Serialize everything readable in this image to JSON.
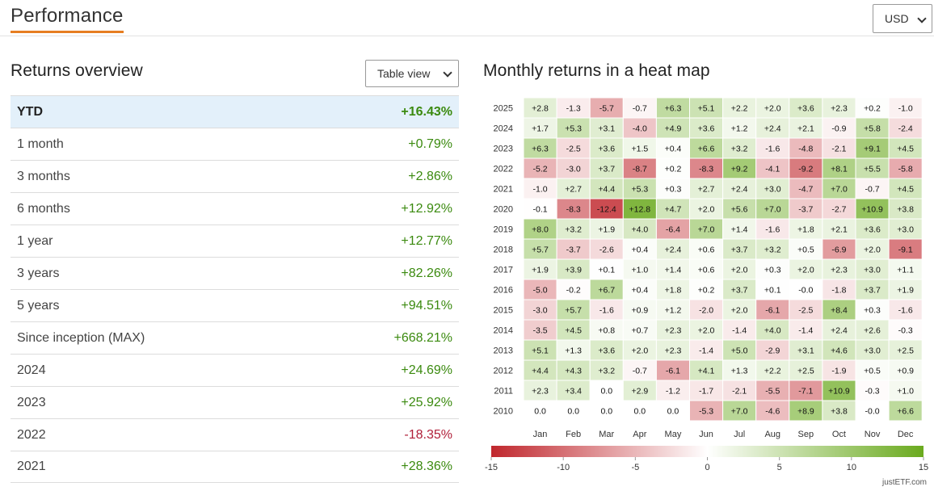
{
  "header": {
    "title": "Performance",
    "currency": "USD"
  },
  "overview": {
    "title": "Returns overview",
    "view_label": "Table view",
    "rows": [
      {
        "label": "YTD",
        "value": "+16.43%"
      },
      {
        "label": "1 month",
        "value": "+0.79%"
      },
      {
        "label": "3 months",
        "value": "+2.86%"
      },
      {
        "label": "6 months",
        "value": "+12.92%"
      },
      {
        "label": "1 year",
        "value": "+12.77%"
      },
      {
        "label": "3 years",
        "value": "+82.26%"
      },
      {
        "label": "5 years",
        "value": "+94.51%"
      },
      {
        "label": "Since inception (MAX)",
        "value": "+668.21%"
      },
      {
        "label": "2024",
        "value": "+24.69%"
      },
      {
        "label": "2023",
        "value": "+25.92%"
      },
      {
        "label": "2022",
        "value": "-18.35%"
      },
      {
        "label": "2021",
        "value": "+28.36%"
      }
    ]
  },
  "heatmap_title": "Monthly returns in a heat map",
  "watermark": "justETF.com",
  "colors": {
    "accent": "#e67e22",
    "positive": "#3b8a0f",
    "negative": "#b0203a",
    "scale_min": "#c0272d",
    "scale_max": "#6aaa1e"
  },
  "chart_data": {
    "type": "heatmap",
    "x": [
      "Jan",
      "Feb",
      "Mar",
      "Apr",
      "May",
      "Jun",
      "Jul",
      "Aug",
      "Sep",
      "Oct",
      "Nov",
      "Dec"
    ],
    "y": [
      "2025",
      "2024",
      "2023",
      "2022",
      "2021",
      "2020",
      "2019",
      "2018",
      "2017",
      "2016",
      "2015",
      "2014",
      "2013",
      "2012",
      "2011",
      "2010"
    ],
    "values": [
      [
        "+2.8",
        "-1.3",
        "-5.7",
        "-0.7",
        "+6.3",
        "+5.1",
        "+2.2",
        "+2.0",
        "+3.6",
        "+2.3",
        "+0.2",
        "-1.0"
      ],
      [
        "+1.7",
        "+5.3",
        "+3.1",
        "-4.0",
        "+4.9",
        "+3.6",
        "+1.2",
        "+2.4",
        "+2.1",
        "-0.9",
        "+5.8",
        "-2.4"
      ],
      [
        "+6.3",
        "-2.5",
        "+3.6",
        "+1.5",
        "+0.4",
        "+6.6",
        "+3.2",
        "-1.6",
        "-4.8",
        "-2.1",
        "+9.1",
        "+4.5"
      ],
      [
        "-5.2",
        "-3.0",
        "+3.7",
        "-8.7",
        "+0.2",
        "-8.3",
        "+9.2",
        "-4.1",
        "-9.2",
        "+8.1",
        "+5.5",
        "-5.8"
      ],
      [
        "-1.0",
        "+2.7",
        "+4.4",
        "+5.3",
        "+0.3",
        "+2.7",
        "+2.4",
        "+3.0",
        "-4.7",
        "+7.0",
        "-0.7",
        "+4.5"
      ],
      [
        "-0.1",
        "-8.3",
        "-12.4",
        "+12.8",
        "+4.7",
        "+2.0",
        "+5.6",
        "+7.0",
        "-3.7",
        "-2.7",
        "+10.9",
        "+3.8"
      ],
      [
        "+8.0",
        "+3.2",
        "+1.9",
        "+4.0",
        "-6.4",
        "+7.0",
        "+1.4",
        "-1.6",
        "+1.8",
        "+2.1",
        "+3.6",
        "+3.0"
      ],
      [
        "+5.7",
        "-3.7",
        "-2.6",
        "+0.4",
        "+2.4",
        "+0.6",
        "+3.7",
        "+3.2",
        "+0.5",
        "-6.9",
        "+2.0",
        "-9.1"
      ],
      [
        "+1.9",
        "+3.9",
        "+0.1",
        "+1.0",
        "+1.4",
        "+0.6",
        "+2.0",
        "+0.3",
        "+2.0",
        "+2.3",
        "+3.0",
        "+1.1"
      ],
      [
        "-5.0",
        "-0.2",
        "+6.7",
        "+0.4",
        "+1.8",
        "+0.2",
        "+3.7",
        "+0.1",
        "-0.0",
        "-1.8",
        "+3.7",
        "+1.9"
      ],
      [
        "-3.0",
        "+5.7",
        "-1.6",
        "+0.9",
        "+1.2",
        "-2.0",
        "+2.0",
        "-6.1",
        "-2.5",
        "+8.4",
        "+0.3",
        "-1.6"
      ],
      [
        "-3.5",
        "+4.5",
        "+0.8",
        "+0.7",
        "+2.3",
        "+2.0",
        "-1.4",
        "+4.0",
        "-1.4",
        "+2.4",
        "+2.6",
        "-0.3"
      ],
      [
        "+5.1",
        "+1.3",
        "+3.6",
        "+2.0",
        "+2.3",
        "-1.4",
        "+5.0",
        "-2.9",
        "+3.1",
        "+4.6",
        "+3.0",
        "+2.5"
      ],
      [
        "+4.4",
        "+4.3",
        "+3.2",
        "-0.7",
        "-6.1",
        "+4.1",
        "+1.3",
        "+2.2",
        "+2.5",
        "-1.9",
        "+0.5",
        "+0.9"
      ],
      [
        "+2.3",
        "+3.4",
        "0.0",
        "+2.9",
        "-1.2",
        "-1.7",
        "-2.1",
        "-5.5",
        "-7.1",
        "+10.9",
        "-0.3",
        "+1.0"
      ],
      [
        "0.0",
        "0.0",
        "0.0",
        "0.0",
        "0.0",
        "-5.3",
        "+7.0",
        "-4.6",
        "+8.9",
        "+3.8",
        "-0.0",
        "+6.6"
      ]
    ],
    "color_scale": {
      "min": -15,
      "max": 15,
      "ticks": [
        "-15",
        "-10",
        "-5",
        "0",
        "5",
        "10",
        "15"
      ]
    }
  }
}
